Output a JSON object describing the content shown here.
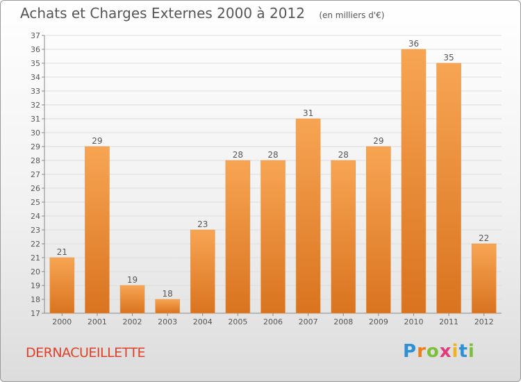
{
  "title": "Achats et Charges Externes 2000 à 2012",
  "unit": "(en milliers d'€)",
  "place": "DERNACUEILLETTE",
  "logo": {
    "letters": [
      {
        "ch": "P",
        "color": "#2f8fd4"
      },
      {
        "ch": "r",
        "color": "#ef7d1a"
      },
      {
        "ch": "o",
        "color": "#7cbf3a"
      },
      {
        "ch": "x",
        "color": "#e23b7a"
      },
      {
        "ch": "i",
        "color": "#f2b21b"
      },
      {
        "ch": "t",
        "color": "#2f8fd4"
      },
      {
        "ch": "i",
        "color": "#7cbf3a"
      }
    ]
  },
  "colors": {
    "bar_top": "#f7a553",
    "bar_bottom": "#d9731f",
    "text": "#555555",
    "grid": "#dddddd"
  },
  "chart_data": {
    "type": "bar",
    "categories": [
      "2000",
      "2001",
      "2002",
      "2003",
      "2004",
      "2005",
      "2006",
      "2007",
      "2008",
      "2009",
      "2010",
      "2011",
      "2012"
    ],
    "values": [
      21,
      29,
      19,
      18,
      23,
      28,
      28,
      31,
      28,
      29,
      36,
      35,
      22
    ],
    "title": "Achats et Charges Externes 2000 à 2012",
    "ylim": [
      17,
      37
    ],
    "yticks": [
      17,
      18,
      19,
      20,
      21,
      22,
      23,
      24,
      25,
      26,
      27,
      28,
      29,
      30,
      31,
      32,
      33,
      34,
      35,
      36,
      37
    ],
    "grid": true,
    "data_labels": true
  }
}
